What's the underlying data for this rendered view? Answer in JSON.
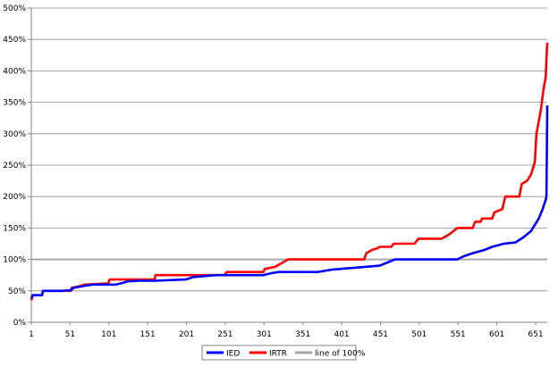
{
  "chart_data": {
    "type": "line",
    "title": "",
    "xlabel": "",
    "ylabel": "",
    "xlim": [
      1,
      666
    ],
    "ylim": [
      0,
      500
    ],
    "x_ticks": [
      1,
      51,
      101,
      151,
      201,
      251,
      301,
      351,
      401,
      451,
      501,
      551,
      601,
      651
    ],
    "y_ticks": [
      {
        "value": 0,
        "label": "0%"
      },
      {
        "value": 50,
        "label": "50%"
      },
      {
        "value": 100,
        "label": "100%"
      },
      {
        "value": 150,
        "label": "150%"
      },
      {
        "value": 200,
        "label": "200%"
      },
      {
        "value": 250,
        "label": "250%"
      },
      {
        "value": 300,
        "label": "300%"
      },
      {
        "value": 350,
        "label": "350%"
      },
      {
        "value": 400,
        "label": "400%"
      },
      {
        "value": 450,
        "label": "450%"
      },
      {
        "value": 500,
        "label": "500%"
      }
    ],
    "grid": true,
    "legend": "bottom",
    "series": [
      {
        "name": "IED",
        "color": "#0000ff",
        "points": [
          [
            1,
            38
          ],
          [
            3,
            43
          ],
          [
            15,
            43
          ],
          [
            16,
            50
          ],
          [
            40,
            50
          ],
          [
            52,
            51
          ],
          [
            56,
            55
          ],
          [
            65,
            57
          ],
          [
            80,
            60
          ],
          [
            110,
            60
          ],
          [
            120,
            63
          ],
          [
            125,
            65
          ],
          [
            140,
            66
          ],
          [
            160,
            66
          ],
          [
            200,
            68
          ],
          [
            210,
            72
          ],
          [
            240,
            75
          ],
          [
            300,
            75
          ],
          [
            310,
            78
          ],
          [
            320,
            80
          ],
          [
            370,
            80
          ],
          [
            390,
            84
          ],
          [
            420,
            87
          ],
          [
            450,
            90
          ],
          [
            460,
            95
          ],
          [
            470,
            100
          ],
          [
            550,
            100
          ],
          [
            558,
            105
          ],
          [
            570,
            110
          ],
          [
            585,
            115
          ],
          [
            595,
            120
          ],
          [
            610,
            125
          ],
          [
            625,
            127
          ],
          [
            635,
            135
          ],
          [
            645,
            145
          ],
          [
            655,
            165
          ],
          [
            660,
            180
          ],
          [
            664,
            195
          ],
          [
            665,
            200
          ],
          [
            666,
            345
          ]
        ]
      },
      {
        "name": "IRTR",
        "color": "#ff0000",
        "points": [
          [
            1,
            35
          ],
          [
            3,
            43
          ],
          [
            15,
            43
          ],
          [
            16,
            50
          ],
          [
            40,
            50
          ],
          [
            52,
            50
          ],
          [
            53,
            55
          ],
          [
            62,
            57
          ],
          [
            70,
            60
          ],
          [
            100,
            62
          ],
          [
            102,
            68
          ],
          [
            160,
            68
          ],
          [
            161,
            75
          ],
          [
            250,
            75
          ],
          [
            253,
            80
          ],
          [
            300,
            80
          ],
          [
            302,
            85
          ],
          [
            315,
            88
          ],
          [
            325,
            95
          ],
          [
            332,
            100
          ],
          [
            430,
            100
          ],
          [
            433,
            110
          ],
          [
            440,
            115
          ],
          [
            448,
            118
          ],
          [
            450,
            120
          ],
          [
            465,
            120
          ],
          [
            468,
            125
          ],
          [
            495,
            125
          ],
          [
            500,
            133
          ],
          [
            530,
            133
          ],
          [
            540,
            140
          ],
          [
            550,
            150
          ],
          [
            570,
            150
          ],
          [
            573,
            160
          ],
          [
            580,
            160
          ],
          [
            582,
            165
          ],
          [
            595,
            165
          ],
          [
            598,
            175
          ],
          [
            608,
            180
          ],
          [
            612,
            200
          ],
          [
            630,
            200
          ],
          [
            633,
            220
          ],
          [
            640,
            225
          ],
          [
            645,
            235
          ],
          [
            650,
            255
          ],
          [
            652,
            300
          ],
          [
            655,
            320
          ],
          [
            658,
            340
          ],
          [
            661,
            370
          ],
          [
            664,
            390
          ],
          [
            665,
            420
          ],
          [
            666,
            445
          ]
        ]
      },
      {
        "name": "line of 100%",
        "color": "#a6a6a6",
        "points": [
          [
            1,
            100
          ],
          [
            666,
            100
          ]
        ]
      }
    ]
  }
}
